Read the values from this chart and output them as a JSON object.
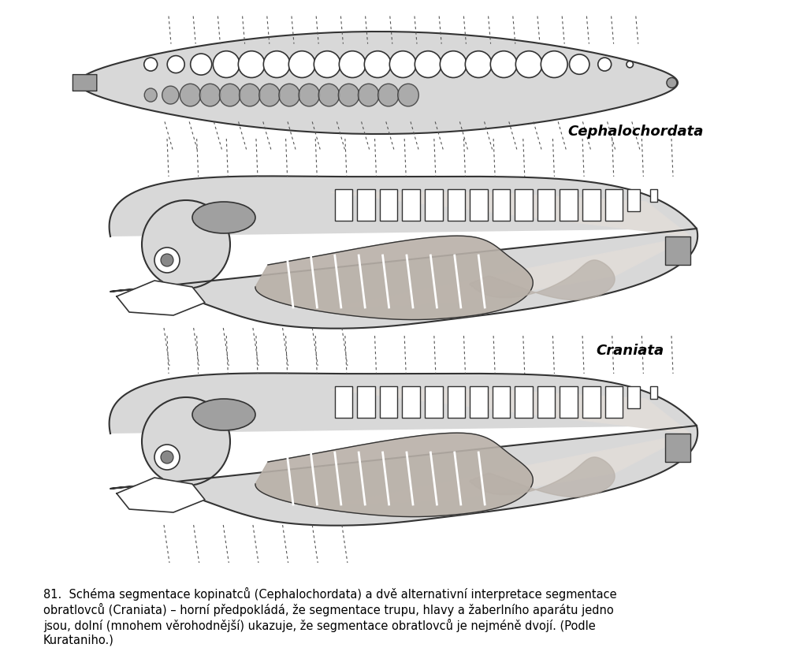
{
  "background_color": "#ffffff",
  "label_cephalochordata": "Cephalochordata",
  "label_craniata": "Craniata",
  "caption_number": "81.",
  "caption_text": "  Schéma segmentace kopinatců (Cephalochordata) a dvě alternativní interpretace segmentace\nobratlovců (Craniata) – horní předpokládá, že segmentace trupu, hlavy a žaberlního aparátu jedno\njsou, dolní (mnohem věrohodnější) ukazuje, že segmentace obratlovců je nejméně dvojí. (Podle\nKurataniho.)",
  "light_gray": "#d8d8d8",
  "mid_gray": "#a0a0a0",
  "dark_gray": "#888888",
  "body_gray": "#b8b0a8",
  "outline_color": "#333333",
  "dashed_color": "#555555"
}
